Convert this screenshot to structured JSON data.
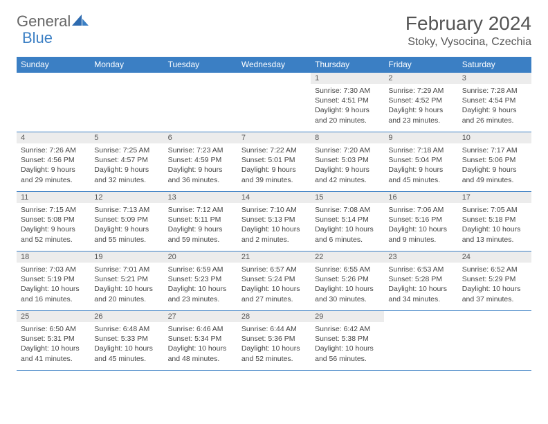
{
  "logo": {
    "text1": "General",
    "text2": "Blue"
  },
  "title": "February 2024",
  "location": "Stoky, Vysocina, Czechia",
  "colors": {
    "header_bg": "#3b7fc4",
    "header_text": "#ffffff",
    "daynum_bg": "#ececec",
    "border": "#3b7fc4",
    "body_text": "#444444"
  },
  "day_headers": [
    "Sunday",
    "Monday",
    "Tuesday",
    "Wednesday",
    "Thursday",
    "Friday",
    "Saturday"
  ],
  "weeks": [
    [
      {
        "num": "",
        "sunrise": "",
        "sunset": "",
        "daylight": ""
      },
      {
        "num": "",
        "sunrise": "",
        "sunset": "",
        "daylight": ""
      },
      {
        "num": "",
        "sunrise": "",
        "sunset": "",
        "daylight": ""
      },
      {
        "num": "",
        "sunrise": "",
        "sunset": "",
        "daylight": ""
      },
      {
        "num": "1",
        "sunrise": "Sunrise: 7:30 AM",
        "sunset": "Sunset: 4:51 PM",
        "daylight": "Daylight: 9 hours and 20 minutes."
      },
      {
        "num": "2",
        "sunrise": "Sunrise: 7:29 AM",
        "sunset": "Sunset: 4:52 PM",
        "daylight": "Daylight: 9 hours and 23 minutes."
      },
      {
        "num": "3",
        "sunrise": "Sunrise: 7:28 AM",
        "sunset": "Sunset: 4:54 PM",
        "daylight": "Daylight: 9 hours and 26 minutes."
      }
    ],
    [
      {
        "num": "4",
        "sunrise": "Sunrise: 7:26 AM",
        "sunset": "Sunset: 4:56 PM",
        "daylight": "Daylight: 9 hours and 29 minutes."
      },
      {
        "num": "5",
        "sunrise": "Sunrise: 7:25 AM",
        "sunset": "Sunset: 4:57 PM",
        "daylight": "Daylight: 9 hours and 32 minutes."
      },
      {
        "num": "6",
        "sunrise": "Sunrise: 7:23 AM",
        "sunset": "Sunset: 4:59 PM",
        "daylight": "Daylight: 9 hours and 36 minutes."
      },
      {
        "num": "7",
        "sunrise": "Sunrise: 7:22 AM",
        "sunset": "Sunset: 5:01 PM",
        "daylight": "Daylight: 9 hours and 39 minutes."
      },
      {
        "num": "8",
        "sunrise": "Sunrise: 7:20 AM",
        "sunset": "Sunset: 5:03 PM",
        "daylight": "Daylight: 9 hours and 42 minutes."
      },
      {
        "num": "9",
        "sunrise": "Sunrise: 7:18 AM",
        "sunset": "Sunset: 5:04 PM",
        "daylight": "Daylight: 9 hours and 45 minutes."
      },
      {
        "num": "10",
        "sunrise": "Sunrise: 7:17 AM",
        "sunset": "Sunset: 5:06 PM",
        "daylight": "Daylight: 9 hours and 49 minutes."
      }
    ],
    [
      {
        "num": "11",
        "sunrise": "Sunrise: 7:15 AM",
        "sunset": "Sunset: 5:08 PM",
        "daylight": "Daylight: 9 hours and 52 minutes."
      },
      {
        "num": "12",
        "sunrise": "Sunrise: 7:13 AM",
        "sunset": "Sunset: 5:09 PM",
        "daylight": "Daylight: 9 hours and 55 minutes."
      },
      {
        "num": "13",
        "sunrise": "Sunrise: 7:12 AM",
        "sunset": "Sunset: 5:11 PM",
        "daylight": "Daylight: 9 hours and 59 minutes."
      },
      {
        "num": "14",
        "sunrise": "Sunrise: 7:10 AM",
        "sunset": "Sunset: 5:13 PM",
        "daylight": "Daylight: 10 hours and 2 minutes."
      },
      {
        "num": "15",
        "sunrise": "Sunrise: 7:08 AM",
        "sunset": "Sunset: 5:14 PM",
        "daylight": "Daylight: 10 hours and 6 minutes."
      },
      {
        "num": "16",
        "sunrise": "Sunrise: 7:06 AM",
        "sunset": "Sunset: 5:16 PM",
        "daylight": "Daylight: 10 hours and 9 minutes."
      },
      {
        "num": "17",
        "sunrise": "Sunrise: 7:05 AM",
        "sunset": "Sunset: 5:18 PM",
        "daylight": "Daylight: 10 hours and 13 minutes."
      }
    ],
    [
      {
        "num": "18",
        "sunrise": "Sunrise: 7:03 AM",
        "sunset": "Sunset: 5:19 PM",
        "daylight": "Daylight: 10 hours and 16 minutes."
      },
      {
        "num": "19",
        "sunrise": "Sunrise: 7:01 AM",
        "sunset": "Sunset: 5:21 PM",
        "daylight": "Daylight: 10 hours and 20 minutes."
      },
      {
        "num": "20",
        "sunrise": "Sunrise: 6:59 AM",
        "sunset": "Sunset: 5:23 PM",
        "daylight": "Daylight: 10 hours and 23 minutes."
      },
      {
        "num": "21",
        "sunrise": "Sunrise: 6:57 AM",
        "sunset": "Sunset: 5:24 PM",
        "daylight": "Daylight: 10 hours and 27 minutes."
      },
      {
        "num": "22",
        "sunrise": "Sunrise: 6:55 AM",
        "sunset": "Sunset: 5:26 PM",
        "daylight": "Daylight: 10 hours and 30 minutes."
      },
      {
        "num": "23",
        "sunrise": "Sunrise: 6:53 AM",
        "sunset": "Sunset: 5:28 PM",
        "daylight": "Daylight: 10 hours and 34 minutes."
      },
      {
        "num": "24",
        "sunrise": "Sunrise: 6:52 AM",
        "sunset": "Sunset: 5:29 PM",
        "daylight": "Daylight: 10 hours and 37 minutes."
      }
    ],
    [
      {
        "num": "25",
        "sunrise": "Sunrise: 6:50 AM",
        "sunset": "Sunset: 5:31 PM",
        "daylight": "Daylight: 10 hours and 41 minutes."
      },
      {
        "num": "26",
        "sunrise": "Sunrise: 6:48 AM",
        "sunset": "Sunset: 5:33 PM",
        "daylight": "Daylight: 10 hours and 45 minutes."
      },
      {
        "num": "27",
        "sunrise": "Sunrise: 6:46 AM",
        "sunset": "Sunset: 5:34 PM",
        "daylight": "Daylight: 10 hours and 48 minutes."
      },
      {
        "num": "28",
        "sunrise": "Sunrise: 6:44 AM",
        "sunset": "Sunset: 5:36 PM",
        "daylight": "Daylight: 10 hours and 52 minutes."
      },
      {
        "num": "29",
        "sunrise": "Sunrise: 6:42 AM",
        "sunset": "Sunset: 5:38 PM",
        "daylight": "Daylight: 10 hours and 56 minutes."
      },
      {
        "num": "",
        "sunrise": "",
        "sunset": "",
        "daylight": ""
      },
      {
        "num": "",
        "sunrise": "",
        "sunset": "",
        "daylight": ""
      }
    ]
  ]
}
